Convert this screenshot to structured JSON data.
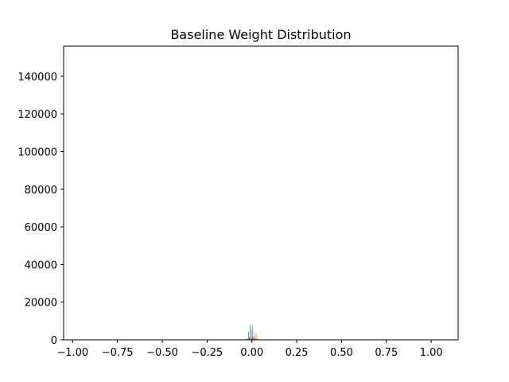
{
  "chart_data": {
    "type": "bar",
    "title": "Baseline Weight Distribution",
    "xlabel": "",
    "ylabel": "",
    "xlim": [
      -1.05,
      1.15
    ],
    "ylim": [
      0,
      156000
    ],
    "x_ticks": [
      -1.0,
      -0.75,
      -0.5,
      -0.25,
      0.0,
      0.25,
      0.5,
      0.75,
      1.0
    ],
    "x_tick_labels": [
      "−1.00",
      "−0.75",
      "−0.50",
      "−0.25",
      "0.00",
      "0.25",
      "0.50",
      "0.75",
      "1.00"
    ],
    "y_ticks": [
      0,
      20000,
      40000,
      60000,
      80000,
      100000,
      120000,
      140000
    ],
    "y_tick_labels": [
      "0",
      "20000",
      "40000",
      "60000",
      "80000",
      "100000",
      "120000",
      "140000"
    ],
    "grid": false,
    "series": [
      {
        "color": "#1f77b4",
        "bins": [
          [
            -0.04,
            300
          ],
          [
            -0.03,
            800
          ],
          [
            -0.02,
            4200
          ],
          [
            -0.01,
            7800
          ],
          [
            0.0,
            5200
          ],
          [
            0.01,
            1500
          ],
          [
            0.02,
            400
          ]
        ]
      },
      {
        "color": "#ff7f0e",
        "bins": [
          [
            -0.03,
            500
          ],
          [
            -0.02,
            2200
          ],
          [
            -0.01,
            6500
          ],
          [
            0.0,
            8000
          ],
          [
            0.01,
            3800
          ],
          [
            0.02,
            3500
          ],
          [
            0.03,
            900
          ]
        ]
      },
      {
        "color": "#2ca02c",
        "bins": [
          [
            -0.04,
            200
          ],
          [
            -0.02,
            1200
          ],
          [
            0.0,
            1800
          ],
          [
            0.02,
            600
          ]
        ]
      },
      {
        "color": "#d62728",
        "bins": [
          [
            -0.03,
            300
          ],
          [
            -0.01,
            900
          ],
          [
            0.01,
            700
          ],
          [
            0.03,
            200
          ]
        ]
      },
      {
        "color": "#9467bd",
        "bins": [
          [
            -0.06,
            150
          ],
          [
            -0.02,
            500
          ],
          [
            0.0,
            600
          ],
          [
            0.02,
            300
          ]
        ]
      }
    ]
  }
}
